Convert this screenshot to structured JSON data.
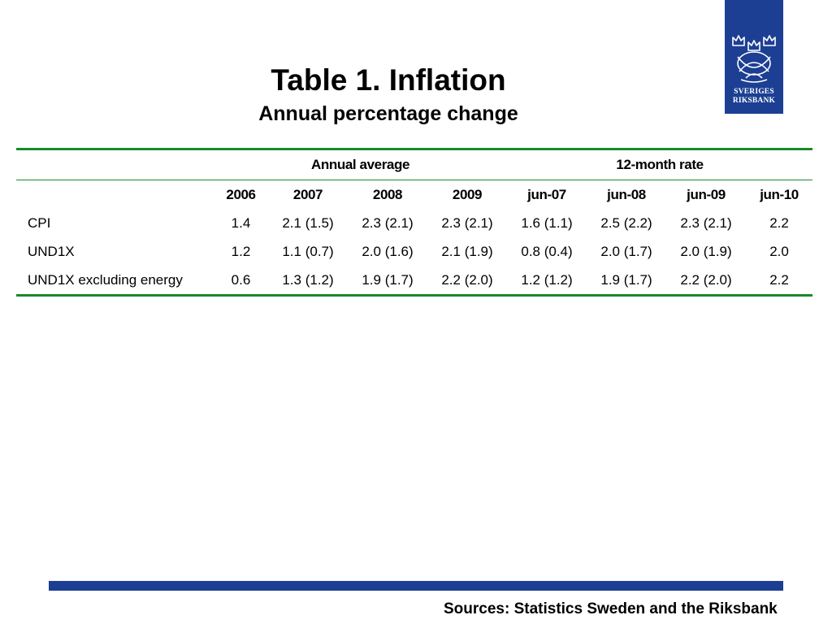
{
  "logo": {
    "name_line1": "SVERIGES",
    "name_line2": "RIKSBANK",
    "background": "#1c3f94"
  },
  "title": "Table 1. Inflation",
  "subtitle": "Annual percentage change",
  "table": {
    "group_headers": [
      "Annual average",
      "12-month rate"
    ],
    "columns": [
      "2006",
      "2007",
      "2008",
      "2009",
      "jun-07",
      "jun-08",
      "jun-09",
      "jun-10"
    ],
    "rows": [
      {
        "label": "CPI",
        "values": [
          "1.4",
          "2.1 (1.5)",
          "2.3 (2.1)",
          "2.3 (2.1)",
          "1.6 (1.1)",
          "2.5 (2.2)",
          "2.3 (2.1)",
          "2.2"
        ]
      },
      {
        "label": "UND1X",
        "values": [
          "1.2",
          "1.1 (0.7)",
          "2.0 (1.6)",
          "2.1 (1.9)",
          "0.8 (0.4)",
          "2.0 (1.7)",
          "2.0 (1.9)",
          "2.0"
        ]
      },
      {
        "label": "UND1X excluding energy",
        "values": [
          "0.6",
          "1.3 (1.2)",
          "1.9 (1.7)",
          "2.2 (2.0)",
          "1.2 (1.2)",
          "1.9 (1.7)",
          "2.2 (2.0)",
          "2.2"
        ]
      }
    ],
    "rule_color": "#1a8a2a"
  },
  "footer": {
    "sources": "Sources: Statistics Sweden and the Riksbank",
    "bar_color": "#1c3f94"
  }
}
